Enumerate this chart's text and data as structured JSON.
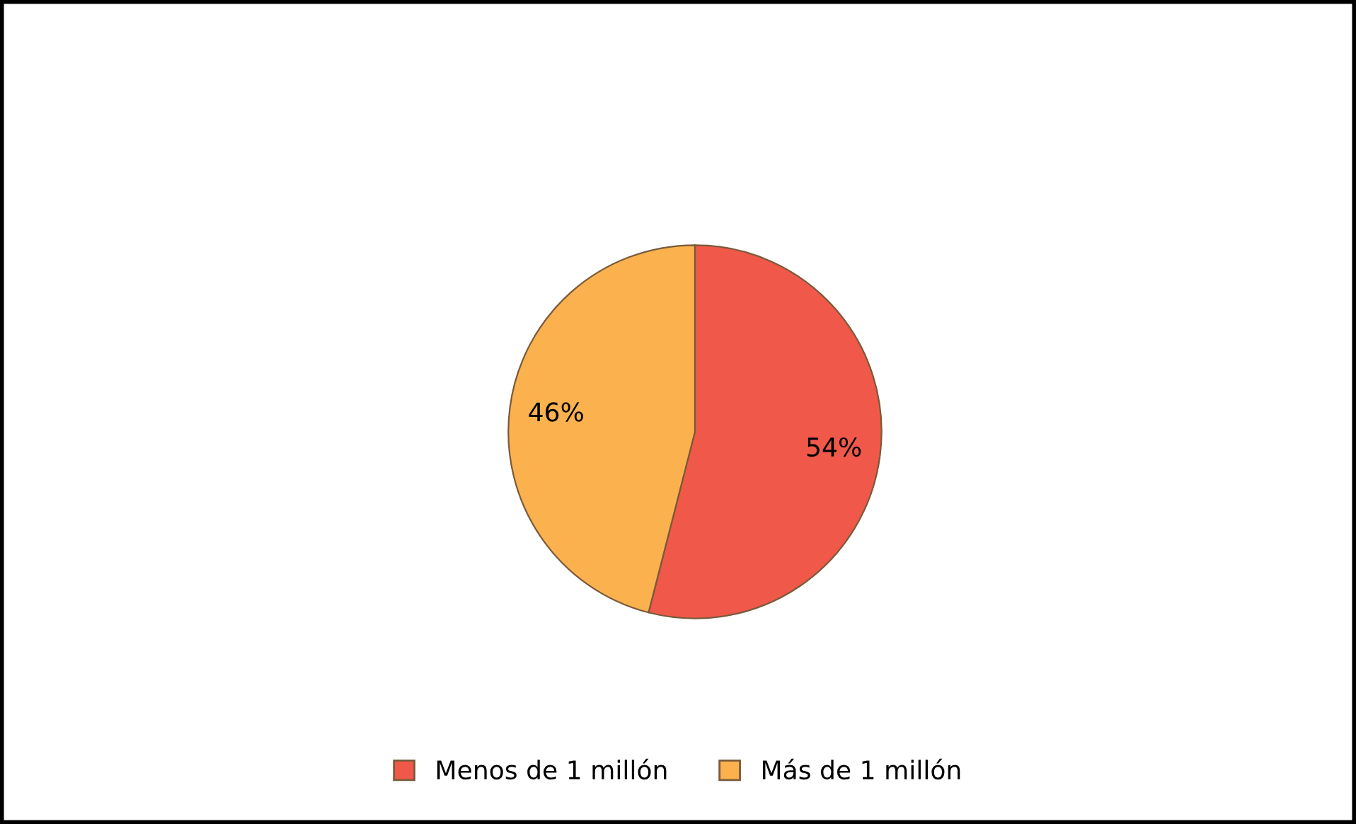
{
  "chart_data": {
    "type": "pie",
    "categories": [
      "Menos de 1 millón",
      "Más de 1 millón"
    ],
    "values": [
      54,
      46
    ],
    "colors": [
      "#f0584a",
      "#fbb24e"
    ],
    "value_labels": [
      "54%",
      "46%"
    ],
    "legend": "bottom"
  }
}
